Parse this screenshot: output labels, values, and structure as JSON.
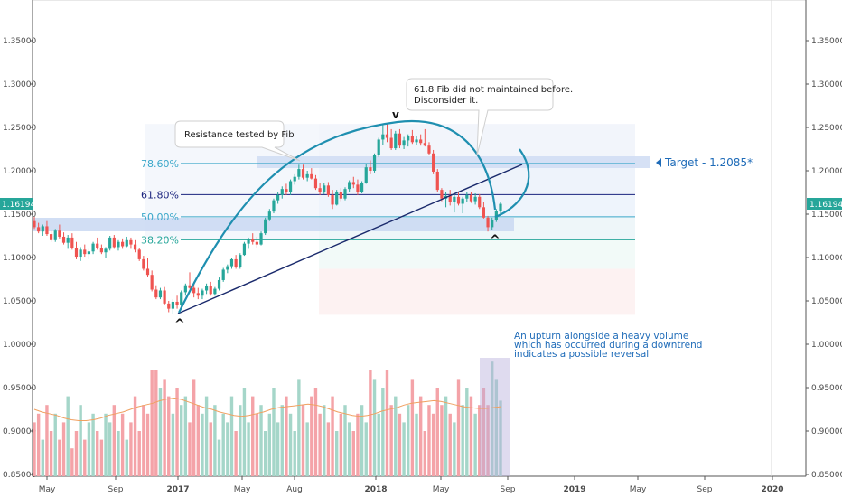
{
  "chart_data": {
    "type": "candlestick",
    "y_ticks": [
      "0.85000",
      "0.90000",
      "0.95000",
      "1.00000",
      "1.05000",
      "1.10000",
      "1.15000",
      "1.20000",
      "1.25000",
      "1.30000",
      "1.35000"
    ],
    "x_ticks": [
      "May",
      "Sep",
      "2017",
      "May",
      "Aug",
      "2018",
      "May",
      "Sep",
      "2019",
      "May",
      "Sep",
      "2020"
    ],
    "ylim": [
      0.85,
      1.395
    ],
    "last_price": "1.16194",
    "colors": {
      "up": "#26a69a",
      "down": "#ef5350",
      "vol_up": "#a5d6c9",
      "vol_down": "#f4a3a8",
      "accent": "#1f8fb0",
      "fib_blue": "#1a237e",
      "zone": "#c9d8f2",
      "target": "#1e6bb8"
    },
    "fib_levels": [
      {
        "label": "78.60%",
        "price": 1.2085,
        "color": "#3aa7c9"
      },
      {
        "label": "61.80%",
        "price": 1.1725,
        "color": "#1a237e"
      },
      {
        "label": "50.00%",
        "price": 1.147,
        "color": "#3aa7c9"
      },
      {
        "label": "38.20%",
        "price": 1.1205,
        "color": "#26a69a"
      }
    ],
    "annotations": {
      "resistance": "Resistance tested by Fib",
      "fib_note_line1": "61.8 Fib did not maintained before.",
      "fib_note_line2": "Disconsider it.",
      "target": "Target - 1.2085*",
      "volume_note_line1": "An upturn alongside a heavy volume",
      "volume_note_line2": "which has occurred during a downtrend",
      "volume_note_line3": "indicates a possible reversal"
    },
    "candles": [
      [
        1.142,
        1.147,
        1.133,
        1.135
      ],
      [
        1.135,
        1.14,
        1.128,
        1.13
      ],
      [
        1.13,
        1.138,
        1.125,
        1.136
      ],
      [
        1.136,
        1.142,
        1.125,
        1.127
      ],
      [
        1.127,
        1.131,
        1.118,
        1.12
      ],
      [
        1.12,
        1.133,
        1.118,
        1.131
      ],
      [
        1.131,
        1.138,
        1.122,
        1.124
      ],
      [
        1.124,
        1.129,
        1.115,
        1.117
      ],
      [
        1.117,
        1.126,
        1.11,
        1.123
      ],
      [
        1.123,
        1.128,
        1.109,
        1.111
      ],
      [
        1.111,
        1.118,
        1.098,
        1.101
      ],
      [
        1.101,
        1.112,
        1.096,
        1.109
      ],
      [
        1.109,
        1.115,
        1.101,
        1.104
      ],
      [
        1.104,
        1.11,
        1.098,
        1.107
      ],
      [
        1.107,
        1.118,
        1.104,
        1.116
      ],
      [
        1.116,
        1.123,
        1.109,
        1.111
      ],
      [
        1.111,
        1.115,
        1.104,
        1.106
      ],
      [
        1.106,
        1.112,
        1.099,
        1.11
      ],
      [
        1.11,
        1.125,
        1.108,
        1.123
      ],
      [
        1.123,
        1.126,
        1.11,
        1.112
      ],
      [
        1.112,
        1.12,
        1.108,
        1.118
      ],
      [
        1.118,
        1.122,
        1.11,
        1.113
      ],
      [
        1.113,
        1.124,
        1.112,
        1.12
      ],
      [
        1.12,
        1.123,
        1.11,
        1.115
      ],
      [
        1.115,
        1.12,
        1.106,
        1.109
      ],
      [
        1.109,
        1.111,
        1.096,
        1.098
      ],
      [
        1.098,
        1.102,
        1.085,
        1.087
      ],
      [
        1.087,
        1.1,
        1.078,
        1.08
      ],
      [
        1.08,
        1.085,
        1.061,
        1.063
      ],
      [
        1.063,
        1.068,
        1.052,
        1.054
      ],
      [
        1.054,
        1.065,
        1.052,
        1.062
      ],
      [
        1.062,
        1.066,
        1.045,
        1.047
      ],
      [
        1.047,
        1.05,
        1.037,
        1.041
      ],
      [
        1.041,
        1.052,
        1.035,
        1.049
      ],
      [
        1.049,
        1.056,
        1.041,
        1.045
      ],
      [
        1.045,
        1.062,
        1.043,
        1.06
      ],
      [
        1.06,
        1.07,
        1.056,
        1.068
      ],
      [
        1.068,
        1.083,
        1.064,
        1.065
      ],
      [
        1.065,
        1.072,
        1.054,
        1.059
      ],
      [
        1.059,
        1.065,
        1.052,
        1.056
      ],
      [
        1.056,
        1.064,
        1.052,
        1.062
      ],
      [
        1.062,
        1.07,
        1.058,
        1.067
      ],
      [
        1.067,
        1.072,
        1.056,
        1.058
      ],
      [
        1.058,
        1.066,
        1.056,
        1.064
      ],
      [
        1.064,
        1.077,
        1.062,
        1.074
      ],
      [
        1.074,
        1.088,
        1.072,
        1.086
      ],
      [
        1.086,
        1.092,
        1.082,
        1.09
      ],
      [
        1.09,
        1.1,
        1.087,
        1.098
      ],
      [
        1.098,
        1.103,
        1.087,
        1.089
      ],
      [
        1.089,
        1.105,
        1.087,
        1.103
      ],
      [
        1.103,
        1.118,
        1.102,
        1.116
      ],
      [
        1.116,
        1.123,
        1.11,
        1.121
      ],
      [
        1.121,
        1.128,
        1.115,
        1.118
      ],
      [
        1.118,
        1.124,
        1.111,
        1.115
      ],
      [
        1.115,
        1.13,
        1.114,
        1.128
      ],
      [
        1.128,
        1.146,
        1.126,
        1.144
      ],
      [
        1.144,
        1.156,
        1.142,
        1.153
      ],
      [
        1.153,
        1.168,
        1.151,
        1.166
      ],
      [
        1.166,
        1.175,
        1.162,
        1.172
      ],
      [
        1.172,
        1.182,
        1.168,
        1.179
      ],
      [
        1.179,
        1.185,
        1.172,
        1.175
      ],
      [
        1.175,
        1.19,
        1.172,
        1.188
      ],
      [
        1.188,
        1.196,
        1.184,
        1.193
      ],
      [
        1.193,
        1.207,
        1.19,
        1.202
      ],
      [
        1.202,
        1.207,
        1.19,
        1.192
      ],
      [
        1.192,
        1.2,
        1.188,
        1.196
      ],
      [
        1.196,
        1.203,
        1.19,
        1.191
      ],
      [
        1.191,
        1.195,
        1.178,
        1.18
      ],
      [
        1.18,
        1.186,
        1.172,
        1.176
      ],
      [
        1.176,
        1.186,
        1.173,
        1.183
      ],
      [
        1.183,
        1.187,
        1.17,
        1.172
      ],
      [
        1.172,
        1.178,
        1.156,
        1.161
      ],
      [
        1.161,
        1.178,
        1.16,
        1.176
      ],
      [
        1.176,
        1.18,
        1.165,
        1.168
      ],
      [
        1.168,
        1.181,
        1.166,
        1.179
      ],
      [
        1.179,
        1.189,
        1.175,
        1.187
      ],
      [
        1.187,
        1.193,
        1.18,
        1.184
      ],
      [
        1.184,
        1.19,
        1.172,
        1.176
      ],
      [
        1.176,
        1.188,
        1.174,
        1.186
      ],
      [
        1.186,
        1.208,
        1.185,
        1.204
      ],
      [
        1.204,
        1.212,
        1.196,
        1.2
      ],
      [
        1.2,
        1.22,
        1.198,
        1.218
      ],
      [
        1.218,
        1.238,
        1.216,
        1.236
      ],
      [
        1.236,
        1.253,
        1.23,
        1.242
      ],
      [
        1.242,
        1.254,
        1.233,
        1.238
      ],
      [
        1.238,
        1.248,
        1.224,
        1.226
      ],
      [
        1.226,
        1.246,
        1.224,
        1.243
      ],
      [
        1.243,
        1.248,
        1.226,
        1.229
      ],
      [
        1.229,
        1.239,
        1.225,
        1.235
      ],
      [
        1.235,
        1.242,
        1.228,
        1.24
      ],
      [
        1.24,
        1.247,
        1.231,
        1.233
      ],
      [
        1.233,
        1.24,
        1.23,
        1.236
      ],
      [
        1.236,
        1.242,
        1.229,
        1.232
      ],
      [
        1.232,
        1.248,
        1.228,
        1.229
      ],
      [
        1.229,
        1.233,
        1.218,
        1.22
      ],
      [
        1.22,
        1.224,
        1.196,
        1.199
      ],
      [
        1.199,
        1.202,
        1.175,
        1.178
      ],
      [
        1.178,
        1.18,
        1.165,
        1.168
      ],
      [
        1.168,
        1.175,
        1.158,
        1.171
      ],
      [
        1.171,
        1.178,
        1.16,
        1.164
      ],
      [
        1.164,
        1.173,
        1.152,
        1.17
      ],
      [
        1.17,
        1.176,
        1.16,
        1.162
      ],
      [
        1.162,
        1.17,
        1.151,
        1.168
      ],
      [
        1.168,
        1.176,
        1.164,
        1.172
      ],
      [
        1.172,
        1.176,
        1.163,
        1.165
      ],
      [
        1.165,
        1.174,
        1.161,
        1.17
      ],
      [
        1.17,
        1.173,
        1.156,
        1.158
      ],
      [
        1.158,
        1.164,
        1.145,
        1.146
      ],
      [
        1.146,
        1.148,
        1.13,
        1.135
      ],
      [
        1.135,
        1.146,
        1.132,
        1.143
      ],
      [
        1.143,
        1.156,
        1.141,
        1.154
      ],
      [
        1.154,
        1.164,
        1.15,
        1.1619
      ]
    ],
    "volume_levels": [
      0.91,
      0.92,
      0.89,
      0.93,
      0.9,
      0.92,
      0.89,
      0.91,
      0.94,
      0.88,
      0.9,
      0.93,
      0.89,
      0.91,
      0.92,
      0.9,
      0.89,
      0.92,
      0.91,
      0.93,
      0.9,
      0.92,
      0.89,
      0.91,
      0.94,
      0.9,
      0.93,
      0.92,
      0.97,
      0.97,
      0.95,
      0.96,
      0.94,
      0.92,
      0.95,
      0.93,
      0.94,
      0.91,
      0.96,
      0.93,
      0.92,
      0.94,
      0.91,
      0.93,
      0.89,
      0.92,
      0.91,
      0.94,
      0.9,
      0.93,
      0.95,
      0.91,
      0.94,
      0.92,
      0.93,
      0.9,
      0.92,
      0.95,
      0.91,
      0.93,
      0.94,
      0.92,
      0.9,
      0.96,
      0.93,
      0.91,
      0.94,
      0.95,
      0.92,
      0.93,
      0.91,
      0.94,
      0.9,
      0.92,
      0.93,
      0.91,
      0.9,
      0.92,
      0.93,
      0.91,
      0.97,
      0.96,
      0.92,
      0.95,
      0.97,
      0.93,
      0.94,
      0.92,
      0.91,
      0.93,
      0.96,
      0.92,
      0.94,
      0.9,
      0.93,
      0.92,
      0.95,
      0.93,
      0.94,
      0.92,
      0.91,
      0.96,
      0.93,
      0.95,
      0.94,
      0.92,
      0.93,
      0.95,
      0.93,
      0.98,
      0.96,
      0.935
    ],
    "volume_ma": [
      0.925,
      0.922,
      0.92,
      0.918,
      0.915,
      0.913,
      0.912,
      0.912,
      0.913,
      0.915,
      0.918,
      0.92,
      0.922,
      0.925,
      0.928,
      0.93,
      0.932,
      0.935,
      0.937,
      0.938,
      0.936,
      0.933,
      0.93,
      0.927,
      0.925,
      0.922,
      0.92,
      0.918,
      0.917,
      0.918,
      0.92,
      0.922,
      0.925,
      0.927,
      0.928,
      0.929,
      0.93,
      0.931,
      0.93,
      0.928,
      0.925,
      0.922,
      0.92,
      0.918,
      0.917,
      0.918,
      0.92,
      0.923,
      0.925,
      0.927,
      0.93,
      0.932,
      0.933,
      0.934,
      0.935,
      0.934,
      0.932,
      0.93,
      0.928,
      0.927,
      0.926,
      0.926,
      0.927,
      0.928
    ]
  }
}
